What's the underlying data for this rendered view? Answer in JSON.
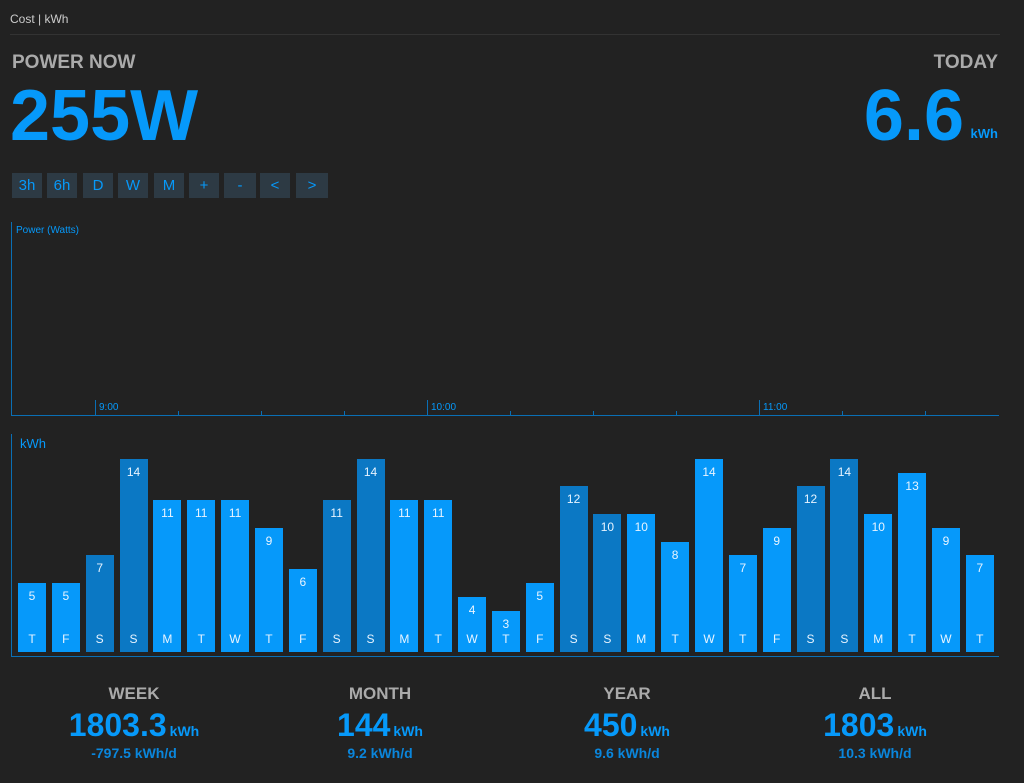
{
  "topbar": {
    "label": "Cost | kWh"
  },
  "power_now": {
    "label": "POWER NOW",
    "value": "255W"
  },
  "today": {
    "label": "TODAY",
    "value": "6.6",
    "unit": "kWh"
  },
  "range_buttons": [
    "3h",
    "6h",
    "D",
    "W",
    "M",
    "+",
    "-",
    "<",
    ">"
  ],
  "power_chart": {
    "ylabel": "Power (Watts)",
    "time_labels": [
      "9:00",
      "10:00",
      "11:00"
    ]
  },
  "colors": {
    "accent": "#0699fa",
    "weekend_bar": "#0b78c4",
    "background": "#222222"
  },
  "chart_data": {
    "type": "bar",
    "ylabel": "kWh",
    "categories": [
      "T",
      "F",
      "S",
      "S",
      "M",
      "T",
      "W",
      "T",
      "F",
      "S",
      "S",
      "M",
      "T",
      "W",
      "T",
      "F",
      "S",
      "S",
      "M",
      "T",
      "W",
      "T",
      "F",
      "S",
      "S",
      "M",
      "T",
      "W",
      "T"
    ],
    "values": [
      5,
      5,
      7,
      14,
      11,
      11,
      11,
      9,
      6,
      11,
      14,
      11,
      11,
      4,
      3,
      5,
      12,
      10,
      10,
      8,
      14,
      7,
      9,
      12,
      14,
      10,
      13,
      9,
      7
    ],
    "value_labels": [
      "5",
      "5",
      "7",
      "14",
      "11",
      "11",
      "11",
      "9",
      "6",
      "11",
      "14",
      "11",
      "11",
      "4",
      "3",
      "5",
      "12",
      "10",
      "10",
      "8",
      "14",
      "7",
      "9",
      "12",
      "14",
      "10",
      "13",
      "9",
      "7"
    ],
    "weekend": [
      false,
      false,
      true,
      true,
      false,
      false,
      false,
      false,
      false,
      true,
      true,
      false,
      false,
      false,
      false,
      false,
      true,
      true,
      false,
      false,
      false,
      false,
      false,
      true,
      true,
      false,
      false,
      false,
      false
    ],
    "ylim": [
      0,
      14.5
    ]
  },
  "stats": [
    {
      "label": "WEEK",
      "value": "1803.3",
      "unit": "kWh",
      "rate": "-797.5 kWh/d"
    },
    {
      "label": "MONTH",
      "value": "144",
      "unit": "kWh",
      "rate": "9.2 kWh/d"
    },
    {
      "label": "YEAR",
      "value": "450",
      "unit": "kWh",
      "rate": "9.6 kWh/d"
    },
    {
      "label": "ALL",
      "value": "1803",
      "unit": "kWh",
      "rate": "10.3 kWh/d"
    }
  ]
}
